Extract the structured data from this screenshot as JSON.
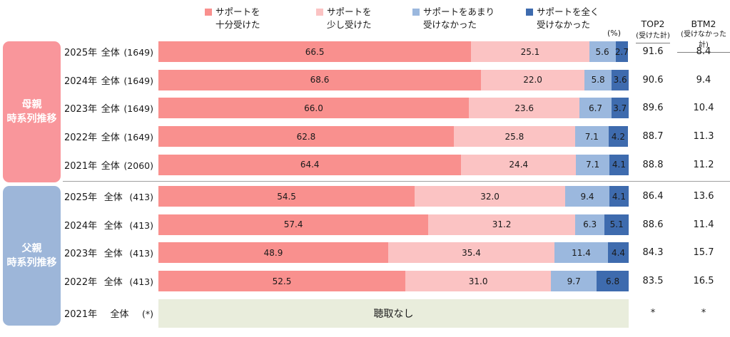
{
  "colors": {
    "sidebar_mother": "#F9969B",
    "sidebar_father": "#9DB6D9",
    "note_bg": "#E9EDDC"
  },
  "legend": {
    "items": [
      {
        "line1": "サポートを",
        "line2": "十分受けた",
        "color": "#F9908E"
      },
      {
        "line1": "サポートを",
        "line2": "少し受けた",
        "color": "#FBC3C3"
      },
      {
        "line1": "サポートをあまり",
        "line2": "受けなかった",
        "color": "#9BB8DE"
      },
      {
        "line1": "サポートを全く",
        "line2": "受けなかった",
        "color": "#3E6BAE"
      }
    ]
  },
  "header": {
    "percent": "(%)",
    "top2_title": "TOP2",
    "top2_sub": "(受けた計)",
    "btm2_title": "BTM2",
    "btm2_sub": "(受けなかった計)"
  },
  "sections": [
    {
      "title1": "母親",
      "title2": "時系列推移",
      "rows": [
        {
          "year": "2025年",
          "group": "全体",
          "n": "(1649)",
          "v": [
            "66.5",
            "25.1",
            "5.6",
            "2.7"
          ],
          "top2": "91.6",
          "btm2": "8.4"
        },
        {
          "year": "2024年",
          "group": "全体",
          "n": "(1649)",
          "v": [
            "68.6",
            "22.0",
            "5.8",
            "3.6"
          ],
          "top2": "90.6",
          "btm2": "9.4"
        },
        {
          "year": "2023年",
          "group": "全体",
          "n": "(1649)",
          "v": [
            "66.0",
            "23.6",
            "6.7",
            "3.7"
          ],
          "top2": "89.6",
          "btm2": "10.4"
        },
        {
          "year": "2022年",
          "group": "全体",
          "n": "(1649)",
          "v": [
            "62.8",
            "25.8",
            "7.1",
            "4.2"
          ],
          "top2": "88.7",
          "btm2": "11.3"
        },
        {
          "year": "2021年",
          "group": "全体",
          "n": "(2060)",
          "v": [
            "64.4",
            "24.4",
            "7.1",
            "4.1"
          ],
          "top2": "88.8",
          "btm2": "11.2"
        }
      ]
    },
    {
      "title1": "父親",
      "title2": "時系列推移",
      "rows": [
        {
          "year": "2025年",
          "group": "全体",
          "n": "(413)",
          "v": [
            "54.5",
            "32.0",
            "9.4",
            "4.1"
          ],
          "top2": "86.4",
          "btm2": "13.6"
        },
        {
          "year": "2024年",
          "group": "全体",
          "n": "(413)",
          "v": [
            "57.4",
            "31.2",
            "6.3",
            "5.1"
          ],
          "top2": "88.6",
          "btm2": "11.4"
        },
        {
          "year": "2023年",
          "group": "全体",
          "n": "(413)",
          "v": [
            "48.9",
            "35.4",
            "11.4",
            "4.4"
          ],
          "top2": "84.3",
          "btm2": "15.7"
        },
        {
          "year": "2022年",
          "group": "全体",
          "n": "(413)",
          "v": [
            "52.5",
            "31.0",
            "9.7",
            "6.8"
          ],
          "top2": "83.5",
          "btm2": "16.5"
        },
        {
          "year": "2021年",
          "group": "全体",
          "n": "(*)",
          "note": "聴取なし",
          "top2": "*",
          "btm2": "*"
        }
      ]
    }
  ],
  "chart_data": {
    "type": "bar",
    "stacked": true,
    "orientation": "horizontal",
    "unit": "%",
    "xlim": [
      0,
      100
    ],
    "legend_position": "top",
    "series_labels": [
      "サポートを十分受けた",
      "サポートを少し受けた",
      "サポートをあまり受けなかった",
      "サポートを全く受けなかった"
    ],
    "series_colors": [
      "#F9908E",
      "#FBC3C3",
      "#9BB8DE",
      "#3E6BAE"
    ],
    "extra_columns": [
      "TOP2 (受けた計)",
      "BTM2 (受けなかった計)"
    ],
    "groups": [
      {
        "title": "母親時系列推移",
        "rows": [
          {
            "label": "2025年 全体",
            "n": 1649,
            "values": [
              66.5,
              25.1,
              5.6,
              2.7
            ],
            "top2": 91.6,
            "btm2": 8.4
          },
          {
            "label": "2024年 全体",
            "n": 1649,
            "values": [
              68.6,
              22.0,
              5.8,
              3.6
            ],
            "top2": 90.6,
            "btm2": 9.4
          },
          {
            "label": "2023年 全体",
            "n": 1649,
            "values": [
              66.0,
              23.6,
              6.7,
              3.7
            ],
            "top2": 89.6,
            "btm2": 10.4
          },
          {
            "label": "2022年 全体",
            "n": 1649,
            "values": [
              62.8,
              25.8,
              7.1,
              4.2
            ],
            "top2": 88.7,
            "btm2": 11.3
          },
          {
            "label": "2021年 全体",
            "n": 2060,
            "values": [
              64.4,
              24.4,
              7.1,
              4.1
            ],
            "top2": 88.8,
            "btm2": 11.2
          }
        ]
      },
      {
        "title": "父親時系列推移",
        "rows": [
          {
            "label": "2025年 全体",
            "n": 413,
            "values": [
              54.5,
              32.0,
              9.4,
              4.1
            ],
            "top2": 86.4,
            "btm2": 13.6
          },
          {
            "label": "2024年 全体",
            "n": 413,
            "values": [
              57.4,
              31.2,
              6.3,
              5.1
            ],
            "top2": 88.6,
            "btm2": 11.4
          },
          {
            "label": "2023年 全体",
            "n": 413,
            "values": [
              48.9,
              35.4,
              11.4,
              4.4
            ],
            "top2": 84.3,
            "btm2": 15.7
          },
          {
            "label": "2022年 全体",
            "n": 413,
            "values": [
              52.5,
              31.0,
              9.7,
              6.8
            ],
            "top2": 83.5,
            "btm2": 16.5
          },
          {
            "label": "2021年 全体",
            "n": "*",
            "values": null,
            "note": "聴取なし",
            "top2": "*",
            "btm2": "*"
          }
        ]
      }
    ]
  }
}
